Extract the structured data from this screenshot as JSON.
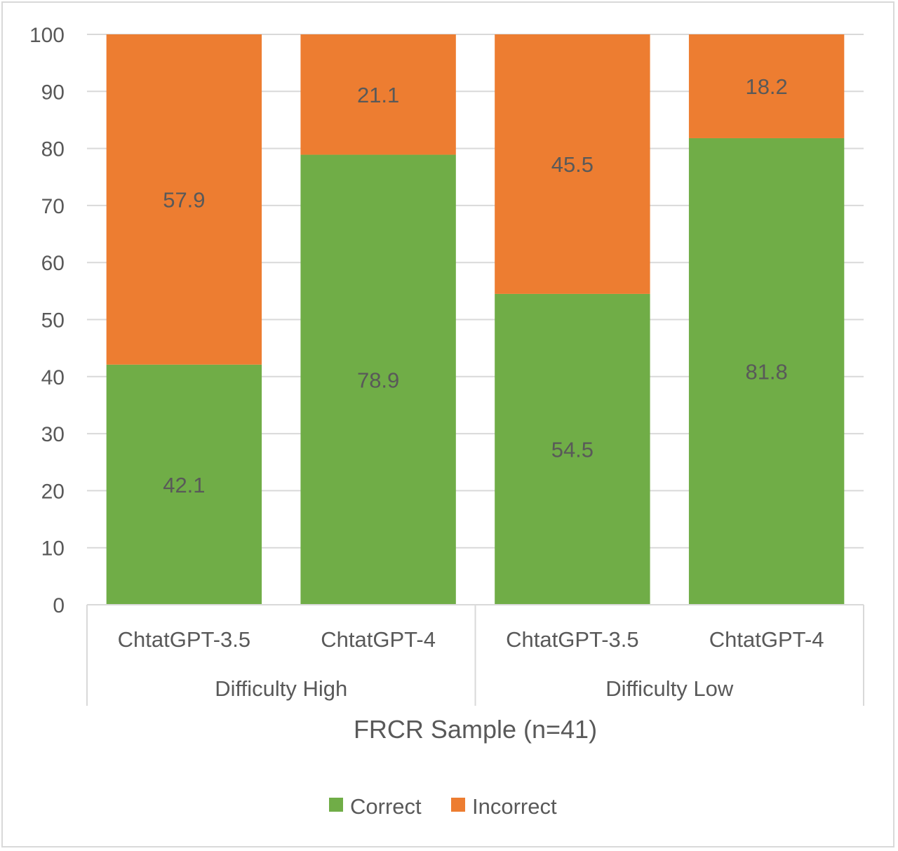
{
  "chart_data": {
    "type": "bar",
    "stacked": true,
    "xlabel": "FRCR Sample (n=41)",
    "ylim": [
      0,
      100
    ],
    "yticks": [
      0,
      10,
      20,
      30,
      40,
      50,
      60,
      70,
      80,
      90,
      100
    ],
    "grid": true,
    "groups": [
      {
        "label": "Difficulty High",
        "categories": [
          "ChtatGPT-3.5",
          "ChtatGPT-4"
        ]
      },
      {
        "label": "Difficulty Low",
        "categories": [
          "ChtatGPT-3.5",
          "ChtatGPT-4"
        ]
      }
    ],
    "categories": [
      "ChtatGPT-3.5",
      "ChtatGPT-4",
      "ChtatGPT-3.5",
      "ChtatGPT-4"
    ],
    "series": [
      {
        "name": "Correct",
        "color": "#70ad47",
        "values": [
          42.1,
          78.9,
          54.5,
          81.8
        ],
        "labels": [
          "42.1",
          "78.9",
          "54.5",
          "81.8"
        ]
      },
      {
        "name": "Incorrect",
        "color": "#ed7d31",
        "values": [
          57.9,
          21.1,
          45.5,
          18.2
        ],
        "labels": [
          "57.9",
          "21.1",
          "45.5",
          "18.2"
        ]
      }
    ],
    "legend_position": "bottom"
  }
}
